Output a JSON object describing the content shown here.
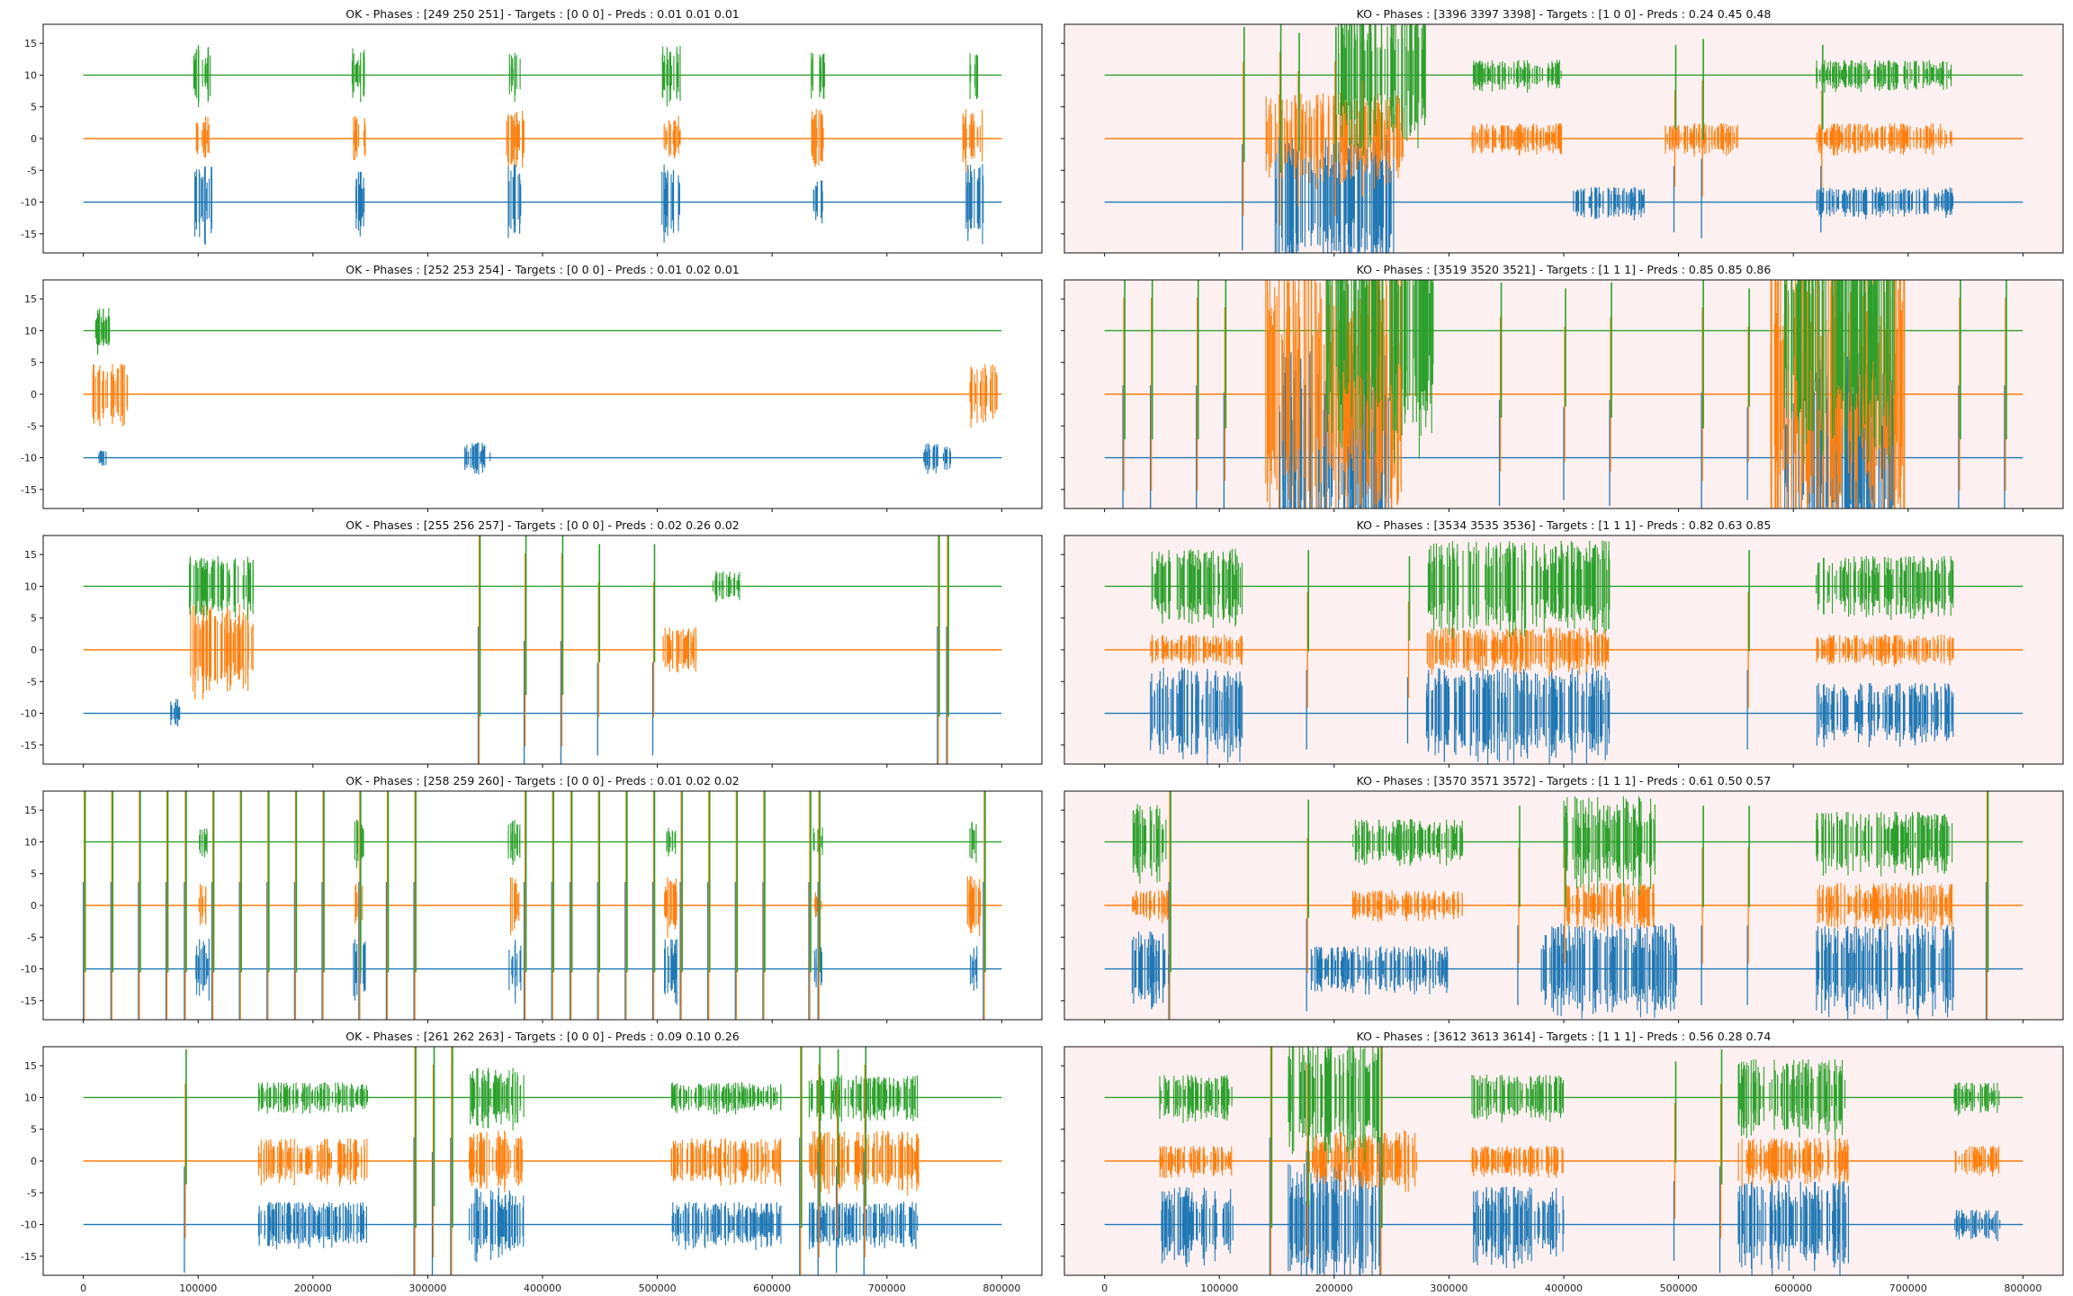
{
  "figure": {
    "layout": "5 rows x 2 columns grid, shared x and y axes",
    "background": "#ffffff",
    "ko_panel_background": "#fdf0f0"
  },
  "chart_data": {
    "type": "line",
    "shared_yticks": [
      -15,
      -10,
      -5,
      0,
      5,
      10,
      15
    ],
    "shared_xticks": [
      0,
      100000,
      200000,
      300000,
      400000,
      500000,
      600000,
      700000,
      800000
    ],
    "xlim": [
      -35000,
      835000
    ],
    "ylim": [
      -18,
      18
    ],
    "series_offsets": [
      -10,
      0,
      10
    ],
    "series_colors": [
      "#1f77b4",
      "#ff7f0e",
      "#2ca02c"
    ],
    "panels": [
      {
        "row": 0,
        "col": 0,
        "status": "ok",
        "title": "OK - Phases : [249 250 251] - Targets : [0 0 0] - Preds : 0.01 0.01 0.01",
        "bursts": [
          [
            -10,
            0.13,
            0.02,
            5
          ],
          [
            -10,
            0.3,
            0.012,
            4
          ],
          [
            -10,
            0.47,
            0.015,
            5
          ],
          [
            -10,
            0.64,
            0.02,
            5
          ],
          [
            -10,
            0.8,
            0.01,
            3
          ],
          [
            -10,
            0.97,
            0.02,
            5
          ],
          [
            0,
            0.13,
            0.015,
            3
          ],
          [
            0,
            0.3,
            0.015,
            3
          ],
          [
            0,
            0.47,
            0.02,
            4
          ],
          [
            0,
            0.64,
            0.02,
            3
          ],
          [
            0,
            0.8,
            0.015,
            4
          ],
          [
            0,
            0.97,
            0.025,
            4
          ],
          [
            10,
            0.13,
            0.02,
            4
          ],
          [
            10,
            0.3,
            0.015,
            4
          ],
          [
            10,
            0.47,
            0.012,
            3
          ],
          [
            10,
            0.64,
            0.02,
            4
          ],
          [
            10,
            0.8,
            0.015,
            3
          ],
          [
            10,
            0.97,
            0.01,
            3
          ]
        ],
        "spikes": []
      },
      {
        "row": 0,
        "col": 1,
        "status": "ko",
        "title": "KO - Phases : [3396 3397 3398] - Targets : [1 0 0] - Preds : 0.24 0.45 0.48",
        "bursts": [
          [
            -10,
            0.25,
            0.13,
            9
          ],
          [
            -10,
            0.55,
            0.08,
            2
          ],
          [
            -10,
            0.85,
            0.15,
            2
          ],
          [
            0,
            0.25,
            0.15,
            6
          ],
          [
            0,
            0.45,
            0.1,
            2
          ],
          [
            0,
            0.65,
            0.08,
            2
          ],
          [
            0,
            0.85,
            0.15,
            2
          ],
          [
            10,
            0.3,
            0.1,
            10
          ],
          [
            10,
            0.45,
            0.1,
            2
          ],
          [
            10,
            0.85,
            0.15,
            2
          ]
        ],
        "spikes": [
          [
            0.15,
            0.8
          ],
          [
            0.19,
            0.9
          ],
          [
            0.21,
            0.7
          ],
          [
            0.25,
            0.8
          ],
          [
            0.28,
            0.6
          ],
          [
            0.62,
            0.5
          ],
          [
            0.65,
            0.6
          ],
          [
            0.78,
            0.5
          ]
        ]
      },
      {
        "row": 1,
        "col": 0,
        "status": "ok",
        "title": "OK - Phases : [252 253 254] - Targets : [0 0 0] - Preds : 0.01 0.02 0.01",
        "bursts": [
          [
            -10,
            0.02,
            0.01,
            1
          ],
          [
            -10,
            0.43,
            0.03,
            2
          ],
          [
            -10,
            0.93,
            0.03,
            2
          ],
          [
            0,
            0.03,
            0.04,
            4
          ],
          [
            0,
            0.98,
            0.03,
            4
          ],
          [
            10,
            0.02,
            0.02,
            3
          ]
        ],
        "spikes": []
      },
      {
        "row": 1,
        "col": 1,
        "status": "ko",
        "title": "KO - Phases : [3519 3520 3521] - Targets : [1 1 1] - Preds : 0.85 0.85 0.86",
        "bursts": [
          [
            -10,
            0.25,
            0.12,
            14
          ],
          [
            -10,
            0.8,
            0.12,
            14
          ],
          [
            0,
            0.25,
            0.15,
            18
          ],
          [
            0,
            0.8,
            0.15,
            18
          ],
          [
            10,
            0.3,
            0.12,
            16
          ],
          [
            10,
            0.8,
            0.12,
            16
          ]
        ],
        "spikes": [
          [
            0.02,
            1.0
          ],
          [
            0.05,
            1.0
          ],
          [
            0.1,
            1.0
          ],
          [
            0.13,
            0.9
          ],
          [
            0.43,
            0.8
          ],
          [
            0.5,
            0.7
          ],
          [
            0.55,
            0.8
          ],
          [
            0.65,
            0.9
          ],
          [
            0.7,
            0.7
          ],
          [
            0.93,
            1.0
          ],
          [
            0.98,
            1.0
          ]
        ]
      },
      {
        "row": 2,
        "col": 0,
        "status": "ok",
        "title": "OK - Phases : [255 256 257] - Targets : [0 0 0] - Preds : 0.02 0.26 0.02",
        "bursts": [
          [
            -10,
            0.1,
            0.01,
            2
          ],
          [
            0,
            0.15,
            0.07,
            6
          ],
          [
            0,
            0.65,
            0.04,
            3
          ],
          [
            10,
            0.15,
            0.07,
            4
          ],
          [
            10,
            0.7,
            0.03,
            2
          ]
        ],
        "spikes": [
          [
            0.43,
            1.2
          ],
          [
            0.48,
            1.0
          ],
          [
            0.52,
            1.0
          ],
          [
            0.56,
            0.7
          ],
          [
            0.62,
            0.7
          ],
          [
            0.93,
            1.2
          ],
          [
            0.94,
            1.2
          ]
        ]
      },
      {
        "row": 2,
        "col": 1,
        "status": "ko",
        "title": "KO - Phases : [3534 3535 3536] - Targets : [1 1 1] - Preds : 0.82 0.63 0.85",
        "bursts": [
          [
            -10,
            0.1,
            0.1,
            6
          ],
          [
            -10,
            0.45,
            0.2,
            6
          ],
          [
            -10,
            0.85,
            0.15,
            4
          ],
          [
            0,
            0.1,
            0.1,
            2
          ],
          [
            0,
            0.45,
            0.2,
            3
          ],
          [
            0,
            0.85,
            0.15,
            2
          ],
          [
            10,
            0.1,
            0.1,
            5
          ],
          [
            10,
            0.45,
            0.2,
            6
          ],
          [
            10,
            0.85,
            0.15,
            4
          ]
        ],
        "spikes": [
          [
            0.22,
            0.6
          ],
          [
            0.33,
            0.5
          ],
          [
            0.7,
            0.6
          ]
        ]
      },
      {
        "row": 3,
        "col": 0,
        "status": "ok",
        "title": "OK - Phases : [258 259 260] - Targets : [0 0 0] - Preds : 0.01 0.02 0.02",
        "bursts": [
          [
            -10,
            0.13,
            0.015,
            4
          ],
          [
            -10,
            0.3,
            0.015,
            4
          ],
          [
            -10,
            0.47,
            0.015,
            4
          ],
          [
            -10,
            0.64,
            0.015,
            4
          ],
          [
            -10,
            0.8,
            0.01,
            3
          ],
          [
            -10,
            0.97,
            0.01,
            3
          ],
          [
            0,
            0.13,
            0.01,
            3
          ],
          [
            0,
            0.3,
            0.01,
            3
          ],
          [
            0,
            0.47,
            0.01,
            4
          ],
          [
            0,
            0.64,
            0.015,
            4
          ],
          [
            0,
            0.8,
            0.01,
            2
          ],
          [
            0,
            0.97,
            0.015,
            4
          ],
          [
            10,
            0.13,
            0.01,
            2
          ],
          [
            10,
            0.3,
            0.01,
            3
          ],
          [
            10,
            0.47,
            0.015,
            3
          ],
          [
            10,
            0.64,
            0.01,
            2
          ],
          [
            10,
            0.8,
            0.01,
            2
          ],
          [
            10,
            0.97,
            0.01,
            3
          ]
        ],
        "spikes": [
          [
            0.0,
            1.2
          ],
          [
            0.03,
            1.2
          ],
          [
            0.06,
            1.2
          ],
          [
            0.09,
            1.2
          ],
          [
            0.11,
            1.2
          ],
          [
            0.14,
            1.2
          ],
          [
            0.17,
            1.2
          ],
          [
            0.2,
            1.2
          ],
          [
            0.23,
            1.2
          ],
          [
            0.26,
            1.2
          ],
          [
            0.3,
            1.2
          ],
          [
            0.33,
            1.2
          ],
          [
            0.36,
            1.2
          ],
          [
            0.48,
            1.2
          ],
          [
            0.51,
            1.2
          ],
          [
            0.53,
            1.2
          ],
          [
            0.56,
            1.2
          ],
          [
            0.59,
            1.2
          ],
          [
            0.62,
            1.2
          ],
          [
            0.65,
            1.2
          ],
          [
            0.68,
            1.2
          ],
          [
            0.71,
            1.2
          ],
          [
            0.74,
            1.2
          ],
          [
            0.79,
            1.2
          ],
          [
            0.8,
            1.2
          ],
          [
            0.98,
            1.2
          ]
        ]
      },
      {
        "row": 3,
        "col": 1,
        "status": "ko",
        "title": "KO - Phases : [3570 3571 3572] - Targets : [1 1 1] - Preds : 0.61 0.50 0.57",
        "bursts": [
          [
            -10,
            0.05,
            0.04,
            5
          ],
          [
            -10,
            0.3,
            0.15,
            3
          ],
          [
            -10,
            0.55,
            0.15,
            6
          ],
          [
            -10,
            0.85,
            0.15,
            6
          ],
          [
            0,
            0.05,
            0.04,
            2
          ],
          [
            0,
            0.33,
            0.12,
            2
          ],
          [
            0,
            0.55,
            0.1,
            3
          ],
          [
            0,
            0.85,
            0.15,
            3
          ],
          [
            10,
            0.05,
            0.04,
            5
          ],
          [
            10,
            0.33,
            0.12,
            3
          ],
          [
            10,
            0.55,
            0.1,
            6
          ],
          [
            10,
            0.85,
            0.15,
            4
          ]
        ],
        "spikes": [
          [
            0.07,
            1.2
          ],
          [
            0.22,
            0.7
          ],
          [
            0.45,
            0.6
          ],
          [
            0.5,
            0.6
          ],
          [
            0.65,
            0.6
          ],
          [
            0.7,
            0.6
          ],
          [
            0.96,
            1.2
          ]
        ]
      },
      {
        "row": 4,
        "col": 0,
        "status": "ok",
        "title": "OK - Phases : [261 262 263] - Targets : [0 0 0] - Preds : 0.09 0.10 0.26",
        "bursts": [
          [
            -10,
            0.25,
            0.12,
            3
          ],
          [
            -10,
            0.45,
            0.06,
            5
          ],
          [
            -10,
            0.7,
            0.12,
            3
          ],
          [
            -10,
            0.85,
            0.12,
            3
          ],
          [
            0,
            0.25,
            0.12,
            3
          ],
          [
            0,
            0.45,
            0.06,
            4
          ],
          [
            0,
            0.7,
            0.12,
            3
          ],
          [
            0,
            0.85,
            0.12,
            4
          ],
          [
            10,
            0.25,
            0.12,
            2
          ],
          [
            10,
            0.45,
            0.06,
            4
          ],
          [
            10,
            0.7,
            0.12,
            2
          ],
          [
            10,
            0.85,
            0.12,
            3
          ]
        ],
        "spikes": [
          [
            0.11,
            0.8
          ],
          [
            0.36,
            1.2
          ],
          [
            0.38,
            1.0
          ],
          [
            0.4,
            1.2
          ],
          [
            0.78,
            1.2
          ],
          [
            0.8,
            1.0
          ],
          [
            0.82,
            0.8
          ],
          [
            0.85,
            1.0
          ]
        ]
      },
      {
        "row": 4,
        "col": 1,
        "status": "ko",
        "title": "KO - Phases : [3612 3613 3614] - Targets : [1 1 1] - Preds : 0.56 0.28 0.74",
        "bursts": [
          [
            -10,
            0.1,
            0.08,
            5
          ],
          [
            -10,
            0.25,
            0.1,
            8
          ],
          [
            -10,
            0.45,
            0.1,
            5
          ],
          [
            -10,
            0.75,
            0.12,
            6
          ],
          [
            -10,
            0.95,
            0.05,
            2
          ],
          [
            0,
            0.1,
            0.08,
            2
          ],
          [
            0,
            0.28,
            0.12,
            4
          ],
          [
            0,
            0.45,
            0.1,
            2
          ],
          [
            0,
            0.75,
            0.12,
            3
          ],
          [
            0,
            0.95,
            0.05,
            2
          ],
          [
            10,
            0.1,
            0.08,
            3
          ],
          [
            10,
            0.25,
            0.1,
            8
          ],
          [
            10,
            0.45,
            0.1,
            3
          ],
          [
            10,
            0.75,
            0.12,
            5
          ],
          [
            10,
            0.95,
            0.05,
            2
          ]
        ],
        "spikes": [
          [
            0.18,
            1.2
          ],
          [
            0.22,
            1.0
          ],
          [
            0.3,
            1.2
          ],
          [
            0.62,
            0.6
          ],
          [
            0.67,
            0.8
          ]
        ]
      }
    ]
  }
}
